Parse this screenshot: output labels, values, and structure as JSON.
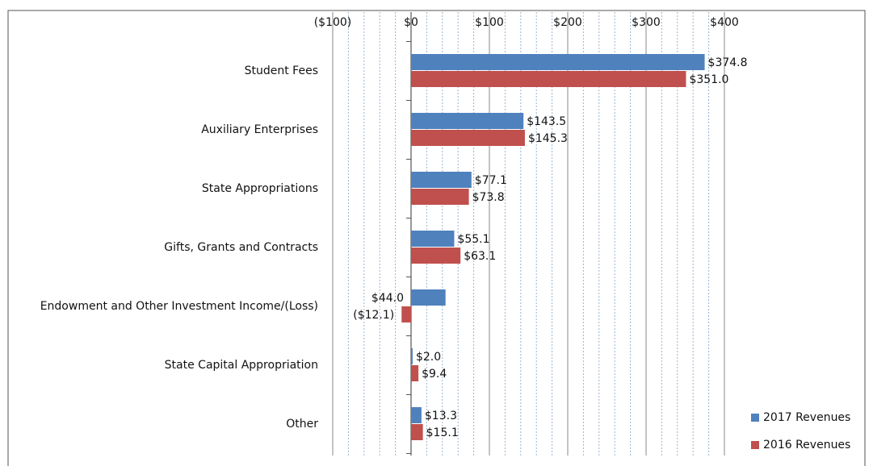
{
  "chart_data": {
    "type": "bar",
    "orientation": "horizontal",
    "categories": [
      "Student Fees",
      "Auxiliary Enterprises",
      "State Appropriations",
      "Gifts, Grants and Contracts",
      "Endowment and Other Investment Income/(Loss)",
      "State Capital Appropriation",
      "Other"
    ],
    "series": [
      {
        "name": "2017 Revenues",
        "color": "#4f81bd",
        "values": [
          374.8,
          143.5,
          77.1,
          55.1,
          44.0,
          2.0,
          13.3
        ],
        "value_labels": [
          "$374.8",
          "$143.5",
          "$77.1",
          "$55.1",
          "$44.0",
          "$2.0",
          "$13.3"
        ]
      },
      {
        "name": "2016 Revenues",
        "color": "#c0504d",
        "values": [
          351.0,
          145.3,
          73.8,
          63.1,
          -12.1,
          9.4,
          15.1
        ],
        "value_labels": [
          "$351.0",
          "$145.3",
          "$73.8",
          "$63.1",
          "($12.1)",
          "$9.4",
          "$15.1"
        ]
      }
    ],
    "xlim": [
      -100,
      400
    ],
    "xticks": [
      {
        "value": -100,
        "label": "($100)"
      },
      {
        "value": 0,
        "label": "$0"
      },
      {
        "value": 100,
        "label": "$100"
      },
      {
        "value": 200,
        "label": "$200"
      },
      {
        "value": 300,
        "label": "$300"
      },
      {
        "value": 400,
        "label": "$400"
      }
    ],
    "minor_xticks": [
      -80,
      -60,
      -40,
      -20,
      20,
      40,
      60,
      80,
      120,
      140,
      160,
      180,
      220,
      240,
      260,
      280,
      320,
      340,
      360,
      380
    ],
    "grid": true,
    "negative_color": "#c00000",
    "legend": "lower right"
  }
}
